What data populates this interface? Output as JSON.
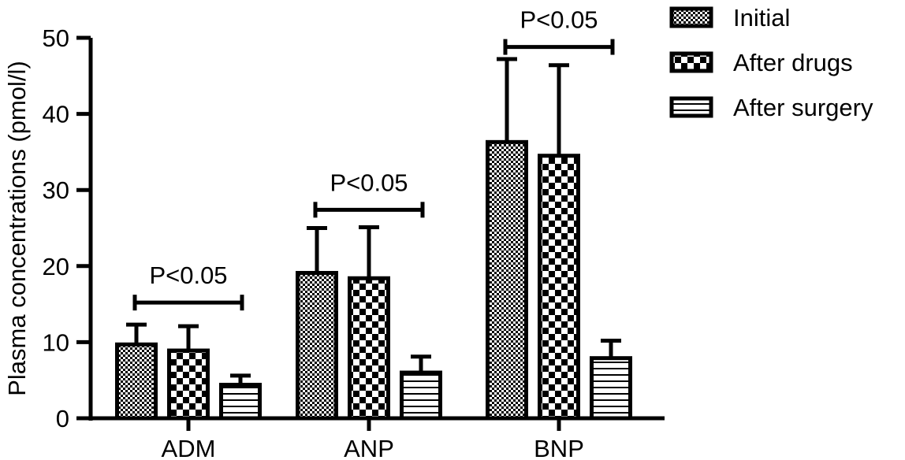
{
  "chart_data": {
    "type": "bar",
    "title": "",
    "xlabel": "",
    "ylabel": "Plasma concentrations (pmol/l)",
    "ylim": [
      0,
      50
    ],
    "yticks": [
      0,
      10,
      20,
      30,
      40,
      50
    ],
    "grid": false,
    "legend_position": "top-right",
    "categories": [
      "ADM",
      "ANP",
      "BNP"
    ],
    "series": [
      {
        "name": "Initial",
        "pattern": "fine-checker",
        "values": [
          9.7,
          19.1,
          36.3
        ],
        "errors": [
          2.6,
          5.9,
          10.9
        ]
      },
      {
        "name": "After drugs",
        "pattern": "coarse-checker",
        "values": [
          8.9,
          18.4,
          34.5
        ],
        "errors": [
          3.2,
          6.7,
          11.9
        ]
      },
      {
        "name": "After surgery",
        "pattern": "horizontal-stripes",
        "values": [
          4.4,
          6.0,
          7.9
        ],
        "errors": [
          1.2,
          2.1,
          2.3
        ]
      }
    ],
    "annotations": [
      {
        "text": "P<0.05",
        "category": "ADM",
        "bracket_y": 15.2
      },
      {
        "text": "P<0.05",
        "category": "ANP",
        "bracket_y": 27.4
      },
      {
        "text": "P<0.05",
        "category": "BNP",
        "bracket_y": 48.8
      }
    ]
  }
}
